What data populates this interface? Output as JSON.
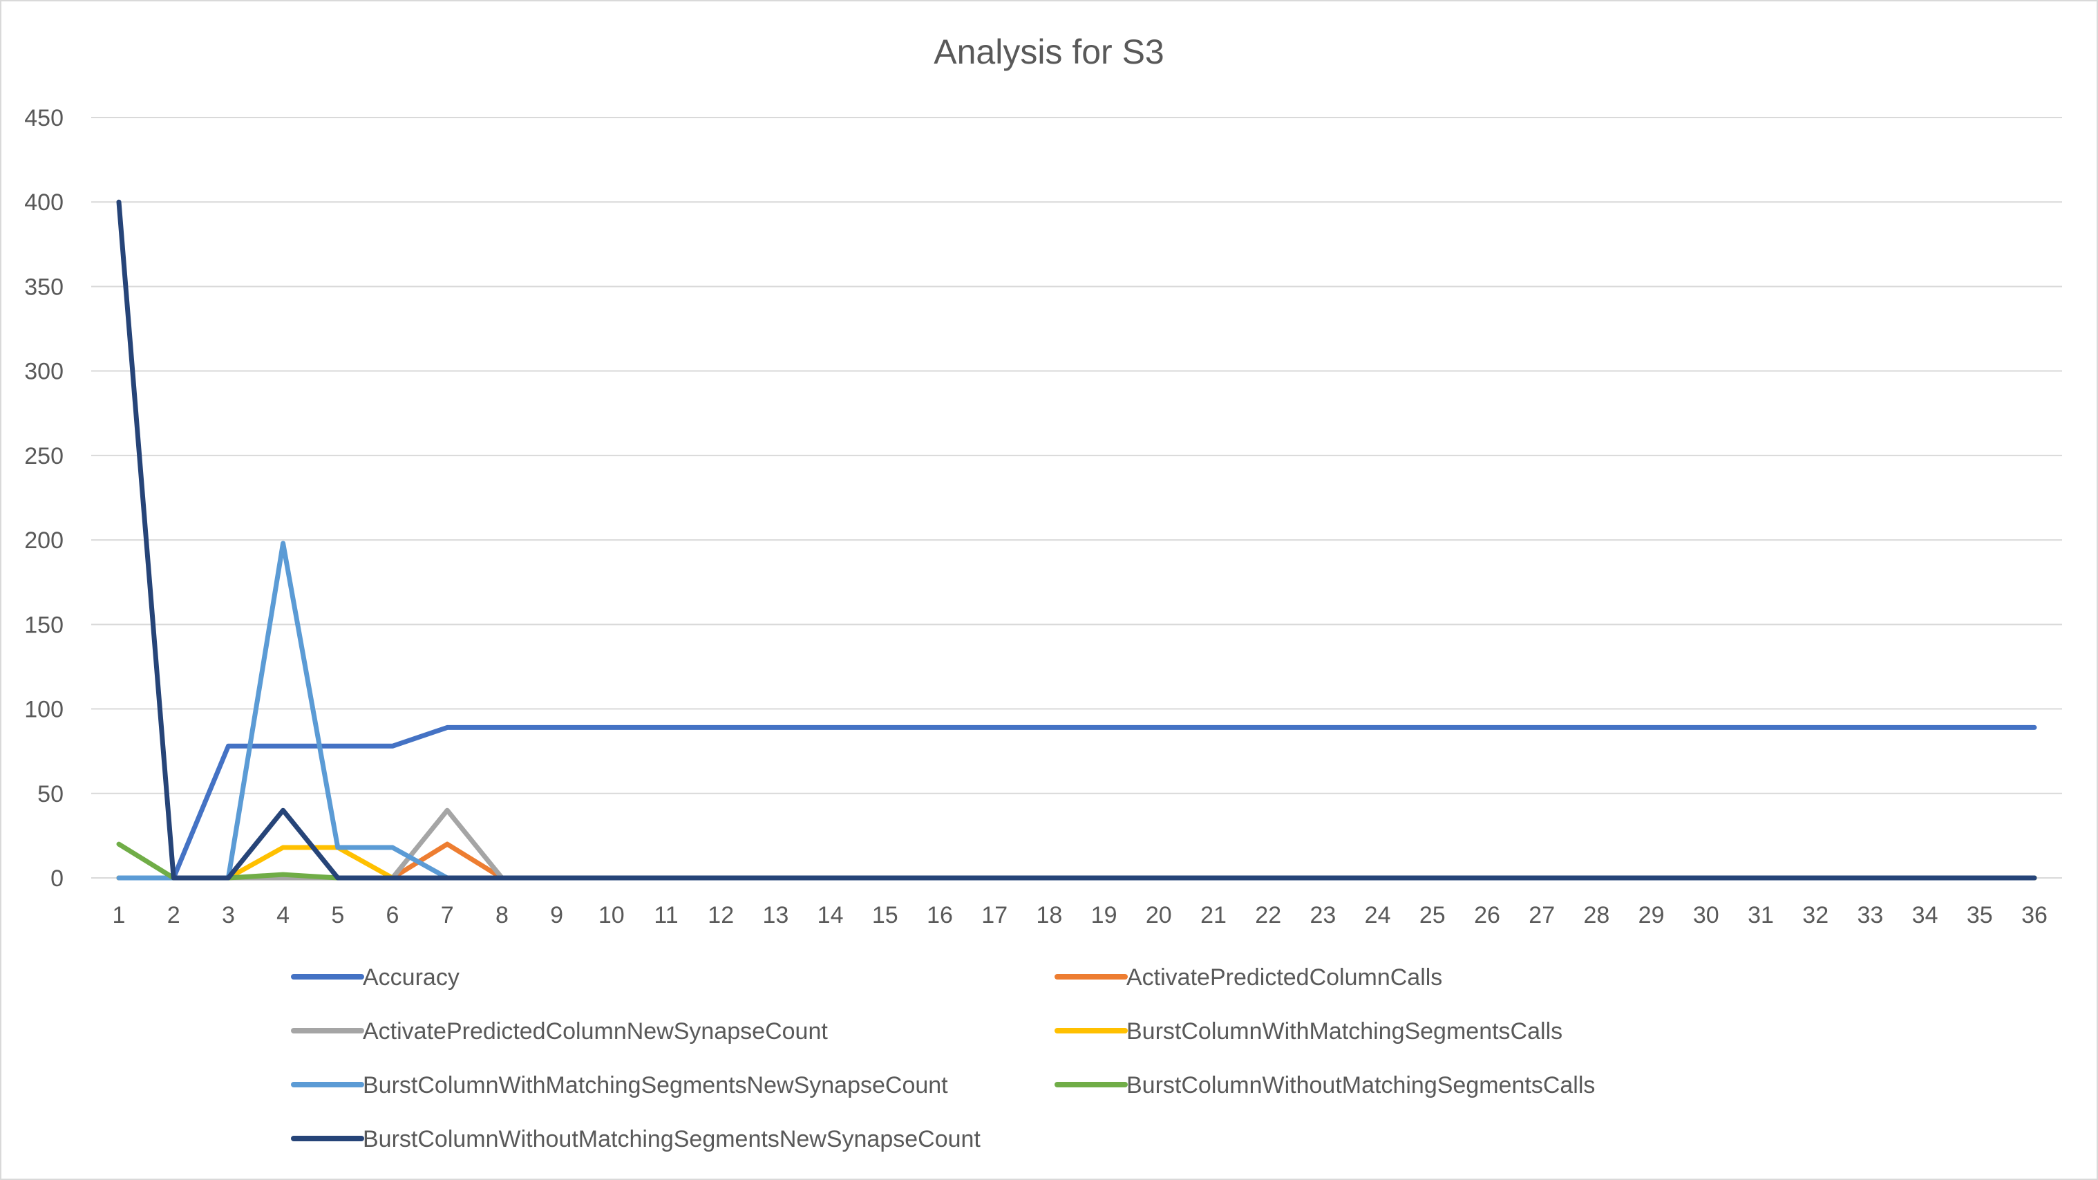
{
  "chart_data": {
    "type": "line",
    "title": "Analysis for S3",
    "xlabel": "",
    "ylabel": "",
    "ylim": [
      0,
      450
    ],
    "yticks": [
      0,
      50,
      100,
      150,
      200,
      250,
      300,
      350,
      400,
      450
    ],
    "grid": true,
    "legend_position": "bottom",
    "x": [
      1,
      2,
      3,
      4,
      5,
      6,
      7,
      8,
      9,
      10,
      11,
      12,
      13,
      14,
      15,
      16,
      17,
      18,
      19,
      20,
      21,
      22,
      23,
      24,
      25,
      26,
      27,
      28,
      29,
      30,
      31,
      32,
      33,
      34,
      35,
      36
    ],
    "series": [
      {
        "name": "Accuracy",
        "color": "#4472C4",
        "values": [
          0,
          0,
          78,
          78,
          78,
          78,
          89,
          89,
          89,
          89,
          89,
          89,
          89,
          89,
          89,
          89,
          89,
          89,
          89,
          89,
          89,
          89,
          89,
          89,
          89,
          89,
          89,
          89,
          89,
          89,
          89,
          89,
          89,
          89,
          89,
          89
        ]
      },
      {
        "name": "ActivatePredictedColumnCalls",
        "color": "#ED7D31",
        "values": [
          0,
          0,
          0,
          0,
          0,
          0,
          20,
          0,
          0,
          0,
          0,
          0,
          0,
          0,
          0,
          0,
          0,
          0,
          0,
          0,
          0,
          0,
          0,
          0,
          0,
          0,
          0,
          0,
          0,
          0,
          0,
          0,
          0,
          0,
          0,
          0
        ]
      },
      {
        "name": "ActivatePredictedColumnNewSynapseCount",
        "color": "#A5A5A5",
        "values": [
          0,
          0,
          0,
          0,
          0,
          0,
          40,
          0,
          0,
          0,
          0,
          0,
          0,
          0,
          0,
          0,
          0,
          0,
          0,
          0,
          0,
          0,
          0,
          0,
          0,
          0,
          0,
          0,
          0,
          0,
          0,
          0,
          0,
          0,
          0,
          0
        ]
      },
      {
        "name": "BurstColumnWithMatchingSegmentsCalls",
        "color": "#FFC000",
        "values": [
          0,
          0,
          0,
          18,
          18,
          0,
          0,
          0,
          0,
          0,
          0,
          0,
          0,
          0,
          0,
          0,
          0,
          0,
          0,
          0,
          0,
          0,
          0,
          0,
          0,
          0,
          0,
          0,
          0,
          0,
          0,
          0,
          0,
          0,
          0,
          0
        ]
      },
      {
        "name": "BurstColumnWithMatchingSegmentsNewSynapseCount",
        "color": "#5B9BD5",
        "values": [
          0,
          0,
          0,
          198,
          18,
          18,
          0,
          0,
          0,
          0,
          0,
          0,
          0,
          0,
          0,
          0,
          0,
          0,
          0,
          0,
          0,
          0,
          0,
          0,
          0,
          0,
          0,
          0,
          0,
          0,
          0,
          0,
          0,
          0,
          0,
          0
        ]
      },
      {
        "name": "BurstColumnWithoutMatchingSegmentsCalls",
        "color": "#70AD47",
        "values": [
          20,
          0,
          0,
          2,
          0,
          0,
          0,
          0,
          0,
          0,
          0,
          0,
          0,
          0,
          0,
          0,
          0,
          0,
          0,
          0,
          0,
          0,
          0,
          0,
          0,
          0,
          0,
          0,
          0,
          0,
          0,
          0,
          0,
          0,
          0,
          0
        ]
      },
      {
        "name": "BurstColumnWithoutMatchingSegmentsNewSynapseCount",
        "color": "#264478",
        "values": [
          400,
          0,
          0,
          40,
          0,
          0,
          0,
          0,
          0,
          0,
          0,
          0,
          0,
          0,
          0,
          0,
          0,
          0,
          0,
          0,
          0,
          0,
          0,
          0,
          0,
          0,
          0,
          0,
          0,
          0,
          0,
          0,
          0,
          0,
          0,
          0
        ]
      }
    ]
  }
}
